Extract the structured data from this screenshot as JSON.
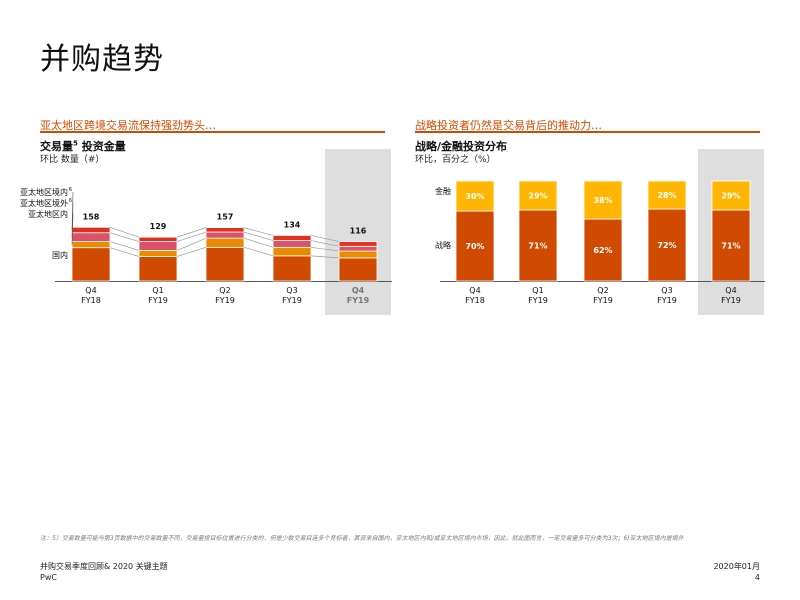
{
  "page": {
    "title": "并购趋势"
  },
  "left": {
    "section_heading": "亚太地区跨境交易流保持强劲势头…",
    "title_a": "交易量",
    "title_sup": "5",
    "title_b": " 投资金量",
    "subtitle": "环比 数量（#）"
  },
  "right": {
    "section_heading": "战略投资者仍然是交易背后的推动力…",
    "title": "战略/金融投资分布",
    "subtitle": "环比，百分之（%）"
  },
  "chart_data": [
    {
      "type": "bar",
      "stacked": true,
      "title": "交易量5 投资金量",
      "subtitle": "环比 数量（#）",
      "categories": [
        "Q4\nFY18",
        "Q1\nFY19",
        "Q2\nFY19",
        "Q3\nFY19",
        "Q4\nFY19"
      ],
      "highlight_index": 4,
      "totals": [
        158,
        129,
        157,
        134,
        116
      ],
      "ylim": [
        0,
        160
      ],
      "series": [
        {
          "name": "国内",
          "color": "#d04a02",
          "values": [
            98,
            72,
            99,
            74,
            68
          ]
        },
        {
          "name": "亚太地区内",
          "color": "#eb8c00",
          "values": [
            18,
            18,
            27,
            25,
            20
          ]
        },
        {
          "name": "亚太地区境外",
          "color": "#db536a",
          "values": [
            26,
            26,
            18,
            20,
            14
          ]
        },
        {
          "name": "亚太地区境内",
          "color": "#e0301e",
          "values": [
            16,
            13,
            13,
            15,
            14
          ]
        }
      ],
      "legend_labels": [
        {
          "text": "亚太地区境内",
          "sup": "6",
          "series": 3
        },
        {
          "text": "亚太地区境外",
          "sup": "6",
          "series": 2
        },
        {
          "text": "亚太地区内",
          "sup": "",
          "series": 1
        },
        {
          "text": "国内",
          "sup": "",
          "series": 0
        }
      ]
    },
    {
      "type": "bar",
      "stacked": true,
      "percent": true,
      "title": "战略/金融投资分布",
      "subtitle": "环比，百分之（%）",
      "categories": [
        "Q4\nFY18",
        "Q1\nFY19",
        "Q2\nFY19",
        "Q3\nFY19",
        "Q4\nFY19"
      ],
      "highlight_index": 4,
      "ylim": [
        0,
        100
      ],
      "series": [
        {
          "name": "战略",
          "color": "#d04a02",
          "values": [
            70,
            71,
            62,
            72,
            71
          ],
          "labels": [
            "70%",
            "71%",
            "62%",
            "72%",
            "71%"
          ]
        },
        {
          "name": "金融",
          "color": "#ffb600",
          "values": [
            30,
            29,
            38,
            28,
            29
          ],
          "labels": [
            "30%",
            "29%",
            "38%",
            "28%",
            "29%"
          ]
        }
      ]
    }
  ],
  "note": "注：5）交易数量可能与第3页数据中的交易数量不同，交易量按目标位置进行分类的，但是少数交易目连多个竞标者，其资来自国内，亚太地区内和/或亚太地区境内市场，因此，就此图而言，一笔交易量多可分类为3次；6)亚太地区境内是境外",
  "footer": {
    "left_line1": "并购交易季度回顾& 2020 关键主题",
    "left_line2": "PwC",
    "right_line1": "2020年01月",
    "right_line2": "4"
  }
}
